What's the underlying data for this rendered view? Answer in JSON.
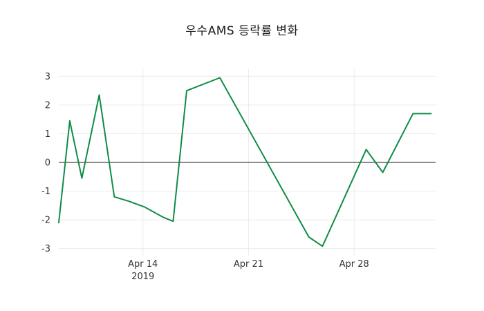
{
  "chart_data": {
    "type": "line",
    "title": "우수AMS 등락률 변화",
    "xlabel": "",
    "ylabel": "",
    "x_range": [
      8.42,
      33.4
    ],
    "y_range": [
      -3.25,
      3.25
    ],
    "y_ticks": [
      -3,
      -2,
      -1,
      0,
      1,
      2,
      3
    ],
    "x_ticks": [
      {
        "value": 14,
        "label": "Apr 14",
        "sublabel": "2019"
      },
      {
        "value": 21,
        "label": "Apr 21",
        "sublabel": ""
      },
      {
        "value": 28,
        "label": "Apr 28",
        "sublabel": ""
      }
    ],
    "zero_line": true,
    "grid": true,
    "legend_position": "none",
    "series": [
      {
        "name": "우수AMS",
        "color": "#0e8c46",
        "points": [
          [
            8.42,
            -2.1
          ],
          [
            9.15,
            1.45
          ],
          [
            9.95,
            -0.55
          ],
          [
            11.1,
            2.35
          ],
          [
            12.1,
            -1.2
          ],
          [
            13.05,
            -1.35
          ],
          [
            14.1,
            -1.55
          ],
          [
            15.3,
            -1.9
          ],
          [
            16.0,
            -2.05
          ],
          [
            16.9,
            2.5
          ],
          [
            19.1,
            2.95
          ],
          [
            25.0,
            -2.6
          ],
          [
            25.9,
            -2.92
          ],
          [
            28.8,
            0.45
          ],
          [
            29.9,
            -0.35
          ],
          [
            31.9,
            1.7
          ],
          [
            33.1,
            1.7
          ]
        ]
      }
    ],
    "colors": {
      "line": "#0e8c46",
      "grid": "#ebebeb",
      "zero_line": "#1a1a1a",
      "tick_text": "#333333",
      "title_text": "#1a1a1a",
      "background": "#ffffff"
    }
  }
}
